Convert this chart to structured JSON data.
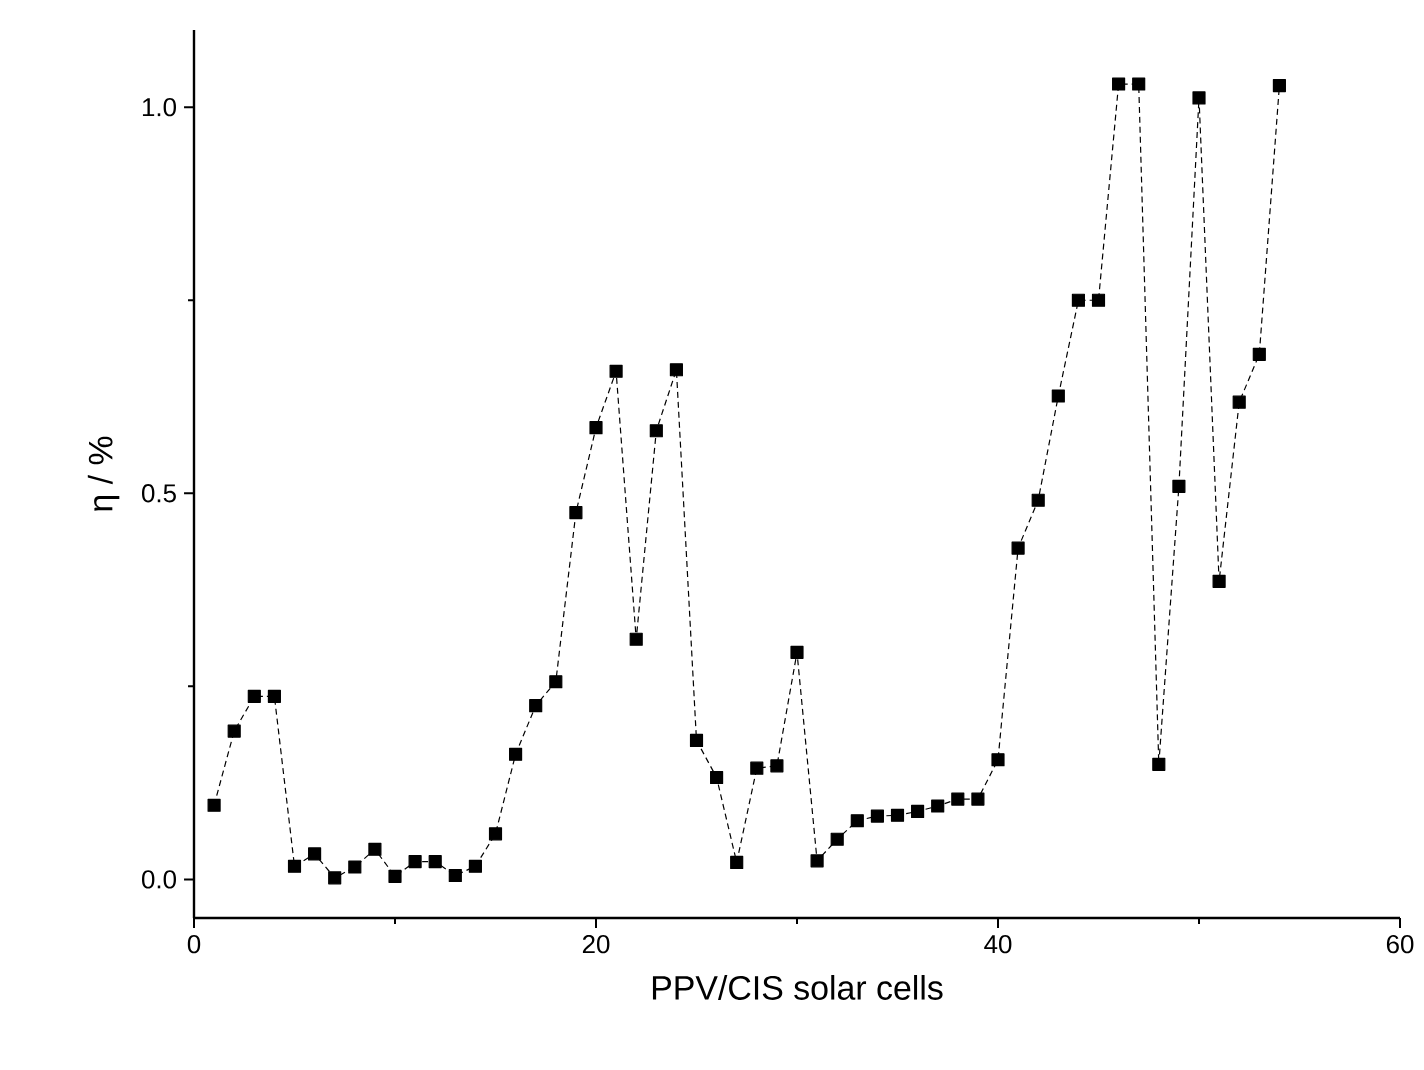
{
  "chart_data": {
    "type": "line",
    "xlabel": "PPV/CIS solar cells",
    "ylabel": "η / %",
    "x": [
      1,
      2,
      3,
      4,
      5,
      6,
      7,
      8,
      9,
      10,
      11,
      12,
      13,
      14,
      15,
      16,
      17,
      18,
      19,
      20,
      21,
      22,
      23,
      24,
      25,
      26,
      27,
      28,
      29,
      30,
      31,
      32,
      33,
      34,
      35,
      36,
      37,
      38,
      39,
      40,
      41,
      42,
      43,
      44,
      45,
      46,
      47,
      48,
      49,
      50,
      51,
      52,
      53,
      54
    ],
    "series": [
      {
        "color": "#000000",
        "values": [
          0.096,
          0.192,
          0.237,
          0.237,
          0.017,
          0.033,
          0.002,
          0.016,
          0.039,
          0.004,
          0.023,
          0.023,
          0.005,
          0.017,
          0.059,
          0.162,
          0.225,
          0.256,
          0.475,
          0.585,
          0.658,
          0.311,
          0.581,
          0.66,
          0.18,
          0.132,
          0.022,
          0.144,
          0.147,
          0.294,
          0.024,
          0.052,
          0.076,
          0.082,
          0.083,
          0.088,
          0.095,
          0.104,
          0.104,
          0.155,
          0.429,
          0.491,
          0.626,
          0.75,
          0.75,
          1.03,
          1.03,
          0.149,
          0.509,
          1.012,
          0.386,
          0.618,
          0.68,
          1.028
        ]
      }
    ],
    "xlim": [
      0,
      60
    ],
    "ylim": [
      -0.05,
      1.1
    ],
    "xticks": [
      0,
      {
        "value": 10,
        "label": null
      },
      20,
      {
        "value": 30,
        "label": null
      },
      40,
      {
        "value": 50,
        "label": null
      },
      60
    ],
    "yticks": [
      {
        "value": 0,
        "label": "0.0"
      },
      {
        "value": 0.25,
        "label": null
      },
      {
        "value": 0.5,
        "label": "0.5"
      },
      {
        "value": 0.75,
        "label": null
      },
      {
        "value": 1,
        "label": "1.0"
      }
    ],
    "marker": "square",
    "line_style": "dashed"
  }
}
